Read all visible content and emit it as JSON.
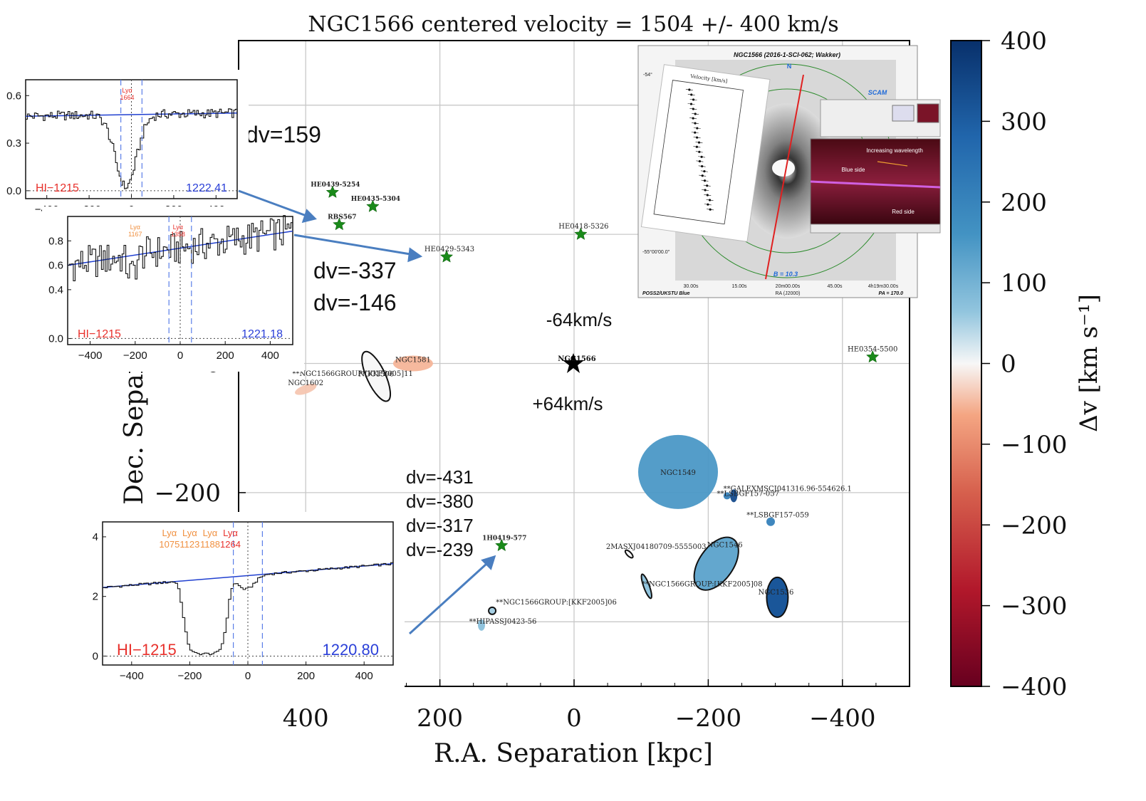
{
  "chart_data": {
    "type": "scatter",
    "title": "NGC1566 centered velocity = 1504 +/- 400 km/s",
    "xlabel": "R.A. Separation [kpc]",
    "ylabel": "Dec. Separation [kpc]",
    "xlim": [
      500,
      -500
    ],
    "ylim": [
      -500,
      500
    ],
    "x_ticks": [
      "400",
      "200",
      "0",
      "−200",
      "−400"
    ],
    "y_ticks": [
      "0",
      "−200"
    ],
    "grid": true,
    "colorbar": {
      "label": "Δv [km s⁻¹]",
      "range": [
        -400,
        400
      ],
      "ticks": [
        "400",
        "300",
        "200",
        "100",
        "0",
        "−100",
        "−200",
        "−300",
        "−400"
      ]
    },
    "center_galaxy": {
      "name": "NGC1566",
      "x": 0,
      "y": 0,
      "note_top": "-64km/s",
      "note_bottom": "+64km/s"
    },
    "qso_sightlines": [
      {
        "name": "HE0439-5254",
        "x": 360,
        "y": 265
      },
      {
        "name": "HE0435-5304",
        "x": 300,
        "y": 243
      },
      {
        "name": "RBS567",
        "x": 350,
        "y": 215
      },
      {
        "name": "HE0429-5343",
        "x": 190,
        "y": 165
      },
      {
        "name": "HE0418-5326",
        "x": -10,
        "y": 200
      },
      {
        "name": "HE0354-5500",
        "x": -445,
        "y": 10
      },
      {
        "name": "1H0419-577",
        "x": 108,
        "y": -282
      }
    ],
    "galaxies": [
      {
        "name": "NGC1581",
        "x": 240,
        "y": 0,
        "dv": -80
      },
      {
        "name": "NGC1596",
        "x": 295,
        "y": -20,
        "dv": 0
      },
      {
        "name": "**NGC1566GROUP:[KKF2005]11",
        "x": 330,
        "y": -15,
        "dv": 0
      },
      {
        "name": "NGC1602",
        "x": 400,
        "y": -40,
        "dv": -60
      },
      {
        "name": "NGC1549",
        "x": -155,
        "y": -168,
        "dv": 190
      },
      {
        "name": "**GALEXMSCJ041316.96-554626.1",
        "x": -228,
        "y": -205,
        "dv": 240
      },
      {
        "name": "**LSBGF157-057",
        "x": -238,
        "y": -205,
        "dv": 350
      },
      {
        "name": "**LSBGF157-059",
        "x": -293,
        "y": -245,
        "dv": 240
      },
      {
        "name": "2MASXJ04180709-5555003",
        "x": -82,
        "y": -295,
        "dv": 0
      },
      {
        "name": "NGC1546",
        "x": -212,
        "y": -310,
        "dv": 160
      },
      {
        "name": "**NGC1566GROUP:[KKF2005]08",
        "x": -108,
        "y": -345,
        "dv": 100
      },
      {
        "name": "NGC1536",
        "x": -303,
        "y": -362,
        "dv": 330
      },
      {
        "name": "**NGC1566GROUP:[KKF2005]06",
        "x": 122,
        "y": -383,
        "dv": 80
      },
      {
        "name": "**HIPASSJ0423-56",
        "x": 138,
        "y": -405,
        "dv": 110
      }
    ],
    "dv_annotations": {
      "top": "dv=159",
      "middle": [
        "dv=-337",
        "dv=-146"
      ],
      "bottom": [
        "dv=-431",
        "dv=-380",
        "dv=-317",
        "dv=-239"
      ]
    },
    "insets": [
      {
        "ion": "HI−1215",
        "wavelength": "1222.41",
        "lines": [
          {
            "label": "Lyα",
            "value": "1664",
            "color": "#e8312c"
          }
        ],
        "xticks": [
          "−400",
          "−200",
          "0",
          "200",
          "400"
        ],
        "yticks": [
          "0.6",
          "0.3",
          "0.0"
        ]
      },
      {
        "ion": "HI−1215",
        "wavelength": "1221.18",
        "lines": [
          {
            "label": "Lyα",
            "value": "1167",
            "color": "#f09040"
          },
          {
            "label": "Lyα",
            "value": "1358",
            "color": "#e8312c"
          }
        ],
        "xticks": [
          "−400",
          "−200",
          "0",
          "200",
          "400"
        ],
        "yticks": [
          "0.8",
          "0.6",
          "0.4",
          "0.0"
        ]
      },
      {
        "ion": "HI−1215",
        "wavelength": "1220.80",
        "lines": [
          {
            "label": "Lyα",
            "value": "1075",
            "color": "#f09040"
          },
          {
            "label": "Lyα",
            "value": "1123",
            "color": "#f09040"
          },
          {
            "label": "Lyα",
            "value": "1188",
            "color": "#f09040"
          },
          {
            "label": "Lyα",
            "value": "1264",
            "color": "#e8312c"
          }
        ],
        "xticks": [
          "−400",
          "−200",
          "0",
          "200",
          "400"
        ],
        "yticks": [
          "4",
          "2",
          "0"
        ]
      }
    ],
    "image_inset": {
      "title": "NGC1566 (2016-1-SCI-062; Wakker)",
      "compass": "N",
      "camera": "SCAM",
      "band": "B = 10.3",
      "survey": "POSS2/UKSTU Blue",
      "pa": "PA = 170.0",
      "ra_label": "RA (J2000)",
      "ra_ticks": [
        "30.00s",
        "15.00s",
        "20m00.00s",
        "45.00s",
        "4h19m30.00s"
      ],
      "dec_ticks": [
        "-54°",
        "-55°00'00.0\""
      ],
      "rotation_curve_label": "Velocity [km/s]",
      "spectrum_labels": [
        "Increasing wavelength",
        "Blue side",
        "Red side"
      ]
    }
  }
}
